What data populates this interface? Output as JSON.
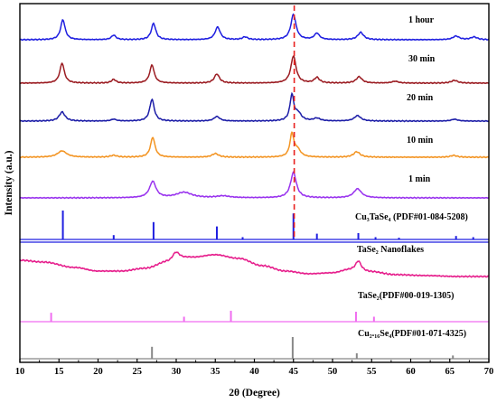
{
  "chart_data": {
    "type": "line",
    "xlabel": "2θ (Degree)",
    "ylabel": "Intensity (a.u.)",
    "xlim": [
      10,
      70
    ],
    "xticks": [
      10,
      15,
      20,
      25,
      30,
      35,
      40,
      45,
      50,
      55,
      60,
      65,
      70
    ],
    "grid": false,
    "legend": "none",
    "reference_line": {
      "x": 45.1,
      "style": "dashed",
      "color": "#e8211f"
    },
    "series": [
      {
        "name": "1 hour",
        "color": "#1f1fe0",
        "baseline": 0.0,
        "noise": 0.6,
        "background": [
          [
            10,
            0.0
          ],
          [
            70,
            0.0
          ]
        ],
        "peaks": [
          [
            15.5,
            22,
            0.35
          ],
          [
            22.0,
            5,
            0.35
          ],
          [
            27.1,
            18,
            0.35
          ],
          [
            35.3,
            14,
            0.4
          ],
          [
            38.8,
            3,
            0.4
          ],
          [
            45.0,
            28,
            0.4
          ],
          [
            48.0,
            7,
            0.4
          ],
          [
            53.6,
            8,
            0.45
          ],
          [
            65.8,
            4,
            0.5
          ],
          [
            68.1,
            3,
            0.5
          ]
        ]
      },
      {
        "name": "30 min",
        "color": "#9b1c22",
        "baseline": 0.0,
        "noise": 0.6,
        "background": [
          [
            10,
            0.0
          ],
          [
            70,
            0.0
          ]
        ],
        "peaks": [
          [
            15.4,
            22,
            0.35
          ],
          [
            22.0,
            4,
            0.35
          ],
          [
            26.9,
            20,
            0.35
          ],
          [
            35.2,
            10,
            0.4
          ],
          [
            45.0,
            30,
            0.4
          ],
          [
            48.0,
            6,
            0.4
          ],
          [
            53.4,
            7,
            0.45
          ],
          [
            58.0,
            2,
            0.5
          ],
          [
            65.6,
            3,
            0.5
          ]
        ]
      },
      {
        "name": "20 min",
        "color": "#1d1ea8",
        "baseline": 0.0,
        "noise": 0.6,
        "background": [
          [
            10,
            0.0
          ],
          [
            70,
            0.0
          ]
        ],
        "peaks": [
          [
            15.4,
            10,
            0.45
          ],
          [
            22.0,
            2,
            0.4
          ],
          [
            26.9,
            24,
            0.35
          ],
          [
            35.2,
            5,
            0.45
          ],
          [
            44.8,
            28,
            0.3
          ],
          [
            45.6,
            8,
            0.5
          ],
          [
            48.0,
            3,
            0.5
          ],
          [
            53.2,
            6,
            0.5
          ],
          [
            65.6,
            2,
            0.5
          ]
        ]
      },
      {
        "name": "10 min",
        "color": "#f39422",
        "baseline": 0.0,
        "noise": 0.6,
        "background": [
          [
            10,
            0.0
          ],
          [
            70,
            0.0
          ]
        ],
        "peaks": [
          [
            15.4,
            7,
            0.7
          ],
          [
            22.0,
            2,
            0.5
          ],
          [
            27.0,
            22,
            0.35
          ],
          [
            35.0,
            4,
            0.5
          ],
          [
            44.8,
            25,
            0.3
          ],
          [
            45.5,
            8,
            0.5
          ],
          [
            53.1,
            6,
            0.5
          ],
          [
            65.5,
            2,
            0.5
          ]
        ]
      },
      {
        "name": "1 min",
        "color": "#9933ee",
        "baseline": 0.0,
        "noise": 0.6,
        "background": [
          [
            10,
            0.0
          ],
          [
            70,
            0.0
          ]
        ],
        "peaks": [
          [
            27.0,
            18,
            0.5
          ],
          [
            31.0,
            6,
            1.2
          ],
          [
            36.0,
            2,
            1.0
          ],
          [
            45.0,
            28,
            0.45
          ],
          [
            53.2,
            10,
            0.6
          ]
        ]
      },
      {
        "name": "TaSe₂ Nanoflakes",
        "color": "#e61e8c",
        "baseline": 0.0,
        "noise": 0.8,
        "background": [
          [
            10,
            8
          ],
          [
            13,
            6
          ],
          [
            17,
            0
          ],
          [
            20,
            -4
          ],
          [
            23,
            -4
          ],
          [
            26,
            -1
          ],
          [
            29,
            6
          ],
          [
            30,
            9
          ],
          [
            32,
            11
          ],
          [
            35,
            14
          ],
          [
            38,
            10
          ],
          [
            41,
            2
          ],
          [
            44,
            -4
          ],
          [
            47,
            -7
          ],
          [
            50,
            -6
          ],
          [
            52,
            -3
          ],
          [
            55,
            -5
          ],
          [
            58,
            -8
          ],
          [
            62,
            -9
          ],
          [
            66,
            -10
          ],
          [
            70,
            -10
          ]
        ],
        "peaks": [
          [
            30.0,
            8,
            0.6
          ],
          [
            53.3,
            11,
            0.45
          ]
        ]
      }
    ],
    "reference_patterns": [
      {
        "name": "Cu₃TaSe₄ (PDF#01-084-5208)",
        "color": "#1f1fe0",
        "lines": [
          [
            15.5,
            100
          ],
          [
            22.0,
            15
          ],
          [
            27.1,
            60
          ],
          [
            35.2,
            45
          ],
          [
            38.5,
            8
          ],
          [
            45.0,
            90
          ],
          [
            48.0,
            20
          ],
          [
            53.3,
            22
          ],
          [
            55.5,
            8
          ],
          [
            58.5,
            6
          ],
          [
            65.8,
            12
          ],
          [
            68.0,
            8
          ]
        ]
      },
      {
        "name": "TaSe₂(PDF#00-019-1305)",
        "color": "#f06df0",
        "lines": [
          [
            14.0,
            45
          ],
          [
            31.0,
            25
          ],
          [
            37.0,
            55
          ],
          [
            53.0,
            50
          ],
          [
            55.3,
            25
          ]
        ]
      },
      {
        "name": "Cu₂.₁₆Se₄(PDF#01-071-4325)",
        "color": "#888888",
        "lines": [
          [
            26.9,
            55
          ],
          [
            44.9,
            100
          ],
          [
            53.1,
            25
          ],
          [
            65.4,
            15
          ]
        ]
      }
    ]
  }
}
